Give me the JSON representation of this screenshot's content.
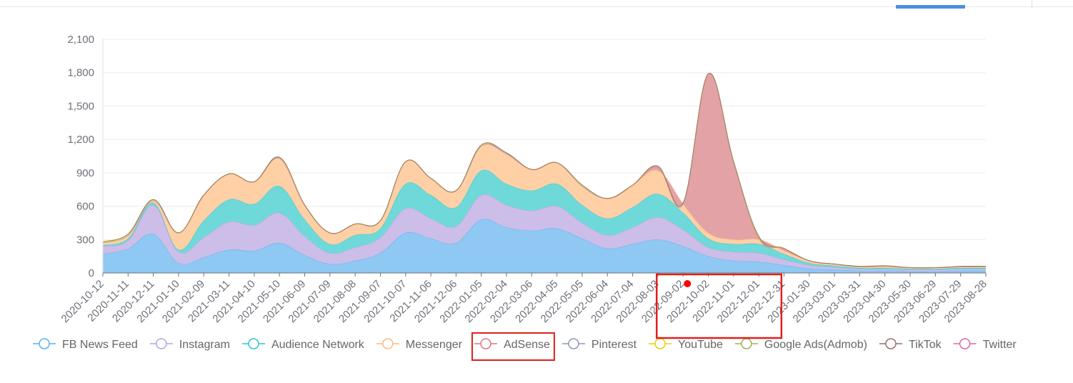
{
  "chart_data": {
    "type": "area",
    "stacked": true,
    "title": "",
    "xlabel": "",
    "ylabel": "",
    "ylim": [
      0,
      2100
    ],
    "yticks": [
      0,
      300,
      600,
      900,
      1200,
      1500,
      1800,
      2100
    ],
    "ytick_labels": [
      "0",
      "300",
      "600",
      "900",
      "1,200",
      "1,500",
      "1,800",
      "2,100"
    ],
    "categories": [
      "2020-10-12",
      "2020-11-11",
      "2020-12-11",
      "2021-01-10",
      "2021-02-09",
      "2021-03-11",
      "2021-04-10",
      "2021-05-10",
      "2021-06-09",
      "2021-07-09",
      "2021-08-08",
      "2021-09-07",
      "2021-10-07",
      "2021-11-06",
      "2021-12-06",
      "2022-01-05",
      "2022-02-04",
      "2022-03-06",
      "2022-04-05",
      "2022-05-05",
      "2022-06-04",
      "2022-07-04",
      "2022-08-03",
      "2022-09-02",
      "2022-10-02",
      "2022-11-01",
      "2022-12-01",
      "2022-12-31",
      "2023-01-30",
      "2023-03-01",
      "2023-03-31",
      "2023-04-30",
      "2023-05-30",
      "2023-06-29",
      "2023-07-29",
      "2023-08-28"
    ],
    "legend_position": "bottom",
    "series": [
      {
        "name": "FB News Feed",
        "color": "#5ab1ef",
        "fill": "#8ec8f3",
        "values": [
          170,
          220,
          350,
          90,
          140,
          210,
          200,
          270,
          160,
          80,
          110,
          180,
          360,
          310,
          270,
          480,
          410,
          380,
          400,
          310,
          220,
          260,
          300,
          240,
          150,
          110,
          100,
          70,
          40,
          30,
          20,
          20,
          15,
          15,
          20,
          20
        ]
      },
      {
        "name": "Instagram",
        "color": "#b6a2de",
        "fill": "#cdbde9",
        "values": [
          70,
          70,
          260,
          100,
          180,
          250,
          230,
          270,
          170,
          100,
          120,
          140,
          220,
          180,
          150,
          220,
          200,
          180,
          200,
          140,
          120,
          150,
          200,
          150,
          80,
          80,
          80,
          50,
          30,
          20,
          15,
          15,
          15,
          15,
          15,
          15
        ]
      },
      {
        "name": "Audience Network",
        "color": "#2ec7c9",
        "fill": "#6fd9da",
        "values": [
          10,
          20,
          20,
          20,
          150,
          200,
          190,
          240,
          150,
          80,
          110,
          80,
          220,
          210,
          170,
          220,
          190,
          180,
          200,
          160,
          150,
          180,
          210,
          150,
          80,
          70,
          80,
          50,
          20,
          15,
          10,
          10,
          8,
          8,
          10,
          10
        ]
      },
      {
        "name": "Messenger",
        "color": "#ffb980",
        "fill": "#ffcfa6",
        "values": [
          20,
          30,
          20,
          150,
          230,
          230,
          200,
          250,
          130,
          100,
          100,
          70,
          200,
          150,
          150,
          220,
          270,
          190,
          190,
          170,
          180,
          200,
          210,
          80,
          50,
          40,
          40,
          30,
          20,
          15,
          10,
          15,
          10,
          10,
          10,
          10
        ]
      },
      {
        "name": "AdSense",
        "color": "#d87a80",
        "fill": "#e3a3a6",
        "values": [
          0,
          0,
          0,
          0,
          0,
          0,
          0,
          0,
          0,
          0,
          0,
          0,
          0,
          0,
          0,
          0,
          0,
          0,
          0,
          0,
          0,
          0,
          30,
          0,
          1430,
          700,
          10,
          20,
          0,
          0,
          0,
          0,
          0,
          0,
          0,
          0
        ]
      },
      {
        "name": "Pinterest",
        "color": "#8d98b3",
        "fill": "#b4bbcd",
        "values": [
          0,
          0,
          0,
          0,
          0,
          0,
          0,
          10,
          0,
          0,
          0,
          0,
          0,
          0,
          0,
          0,
          10,
          0,
          0,
          0,
          0,
          0,
          10,
          10,
          0,
          0,
          5,
          0,
          0,
          0,
          0,
          0,
          0,
          0,
          0,
          0
        ]
      },
      {
        "name": "YouTube",
        "color": "#e5cf0d",
        "fill": "#efe06d",
        "values": [
          10,
          10,
          10,
          0,
          0,
          0,
          0,
          0,
          0,
          0,
          0,
          0,
          0,
          0,
          0,
          10,
          0,
          0,
          0,
          10,
          0,
          0,
          0,
          0,
          0,
          0,
          0,
          0,
          0,
          0,
          5,
          5,
          0,
          0,
          5,
          5
        ]
      },
      {
        "name": "Google Ads(Admob)",
        "color": "#97b552",
        "fill": "#bccf8e",
        "values": [
          0,
          0,
          0,
          0,
          0,
          0,
          0,
          0,
          0,
          0,
          0,
          0,
          0,
          0,
          0,
          0,
          0,
          0,
          0,
          0,
          0,
          0,
          0,
          0,
          0,
          0,
          0,
          0,
          0,
          0,
          0,
          0,
          0,
          0,
          0,
          0
        ]
      },
      {
        "name": "TikTok",
        "color": "#95706d",
        "fill": "#b9a09e",
        "values": [
          0,
          0,
          0,
          0,
          0,
          0,
          0,
          0,
          0,
          0,
          0,
          0,
          0,
          0,
          0,
          0,
          0,
          0,
          0,
          0,
          0,
          0,
          0,
          0,
          0,
          0,
          15,
          0,
          0,
          0,
          0,
          0,
          0,
          0,
          0,
          0
        ]
      },
      {
        "name": "Twitter",
        "color": "#dc69aa",
        "fill": "#e89fc8",
        "values": [
          0,
          0,
          0,
          0,
          0,
          0,
          0,
          0,
          0,
          0,
          0,
          0,
          0,
          0,
          0,
          0,
          0,
          0,
          0,
          0,
          0,
          0,
          0,
          0,
          0,
          0,
          0,
          0,
          0,
          0,
          0,
          0,
          0,
          0,
          0,
          0
        ]
      }
    ],
    "annotations": {
      "marker_color": "#ff0000",
      "highlight_color": "#e0201c",
      "highlighted_legend": "AdSense",
      "highlighted_range": [
        "2022-09-02",
        "2022-11-01"
      ]
    }
  }
}
